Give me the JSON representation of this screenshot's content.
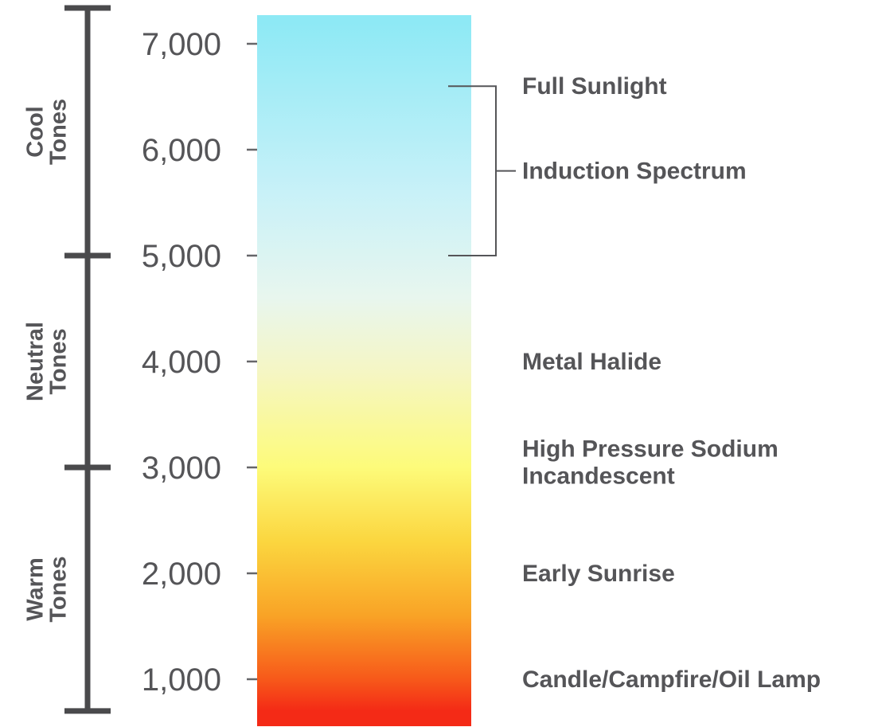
{
  "scale": {
    "min": 700,
    "max": 7200,
    "tick_labels": [
      {
        "value": 7000,
        "label": "7,000"
      },
      {
        "value": 6000,
        "label": "6,000"
      },
      {
        "value": 5000,
        "label": "5,000"
      },
      {
        "value": 4000,
        "label": "4,000"
      },
      {
        "value": 3000,
        "label": "3,000"
      },
      {
        "value": 2000,
        "label": "2,000"
      },
      {
        "value": 1000,
        "label": "1,000"
      }
    ]
  },
  "gradient_colors": [
    {
      "value": 7200,
      "color": "#8ee9f5"
    },
    {
      "value": 5600,
      "color": "#c8f1f8"
    },
    {
      "value": 4600,
      "color": "#e8f6ee"
    },
    {
      "value": 3900,
      "color": "#f5f6c4"
    },
    {
      "value": 3000,
      "color": "#fdfb7a"
    },
    {
      "value": 2300,
      "color": "#fbd63f"
    },
    {
      "value": 1600,
      "color": "#f9a326"
    },
    {
      "value": 1000,
      "color": "#f7591a"
    },
    {
      "value": 700,
      "color": "#f42a16"
    }
  ],
  "bands": [
    {
      "line1": "Cool",
      "line2": "Tones",
      "from": 5000,
      "to": 7500
    },
    {
      "line1": "Neutral",
      "line2": "Tones",
      "from": 3000,
      "to": 5000
    },
    {
      "line1": "Warm",
      "line2": "Tones",
      "from": 700,
      "to": 3000
    }
  ],
  "sources": [
    {
      "value": 6600,
      "lines": [
        "Full Sunlight"
      ]
    },
    {
      "value": 5800,
      "lines": [
        "Induction Spectrum"
      ]
    },
    {
      "value": 4000,
      "lines": [
        "Metal Halide"
      ]
    },
    {
      "value": 3050,
      "lines": [
        "High Pressure Sodium",
        "Incandescent"
      ]
    },
    {
      "value": 2000,
      "lines": [
        "Early Sunrise"
      ]
    },
    {
      "value": 1000,
      "lines": [
        "Candle/Campfire/Oil Lamp"
      ]
    }
  ],
  "bracket": {
    "from": 5000,
    "to": 6600,
    "pointer": 5800
  },
  "colors": {
    "axis": "#4a4a4c",
    "text": "#555558",
    "bracket": "#555558"
  }
}
